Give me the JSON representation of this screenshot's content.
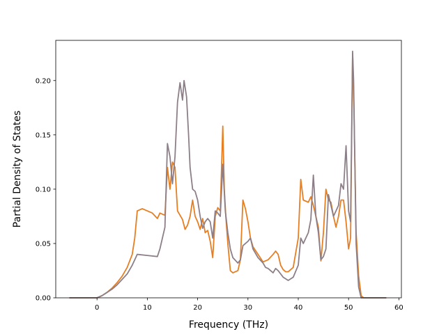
{
  "chart_data": {
    "type": "line",
    "title": "",
    "xlabel": "Frequency (THz)",
    "ylabel": "Partial Density of States",
    "xlim": [
      -8.2,
      60.5
    ],
    "ylim": [
      0,
      0.237
    ],
    "xticks": [
      0,
      10,
      20,
      30,
      40,
      50,
      60
    ],
    "xtick_labels": [
      "0",
      "10",
      "20",
      "30",
      "40",
      "50",
      "60"
    ],
    "yticks": [
      0.0,
      0.05,
      0.1,
      0.15,
      0.2
    ],
    "ytick_labels": [
      "0.00",
      "0.05",
      "0.10",
      "0.15",
      "0.20"
    ],
    "grid": false,
    "legend": "none",
    "series": [
      {
        "color": "#e67e22",
        "points": [
          [
            -5.5,
            0
          ],
          [
            0,
            0
          ],
          [
            1,
            0.002
          ],
          [
            2,
            0.005
          ],
          [
            3,
            0.009
          ],
          [
            4,
            0.014
          ],
          [
            5,
            0.02
          ],
          [
            6,
            0.028
          ],
          [
            7,
            0.04
          ],
          [
            7.5,
            0.055
          ],
          [
            8,
            0.08
          ],
          [
            9,
            0.082
          ],
          [
            10,
            0.08
          ],
          [
            11,
            0.078
          ],
          [
            12,
            0.073
          ],
          [
            12.5,
            0.078
          ],
          [
            13,
            0.077
          ],
          [
            13.5,
            0.076
          ],
          [
            14,
            0.12
          ],
          [
            14.5,
            0.1
          ],
          [
            15,
            0.125
          ],
          [
            15.5,
            0.12
          ],
          [
            16,
            0.08
          ],
          [
            17,
            0.072
          ],
          [
            17.5,
            0.063
          ],
          [
            18,
            0.067
          ],
          [
            18.5,
            0.075
          ],
          [
            19,
            0.09
          ],
          [
            19.5,
            0.075
          ],
          [
            20,
            0.07
          ],
          [
            20.5,
            0.063
          ],
          [
            21,
            0.073
          ],
          [
            21.5,
            0.06
          ],
          [
            22,
            0.062
          ],
          [
            22.5,
            0.052
          ],
          [
            23,
            0.037
          ],
          [
            23.5,
            0.075
          ],
          [
            24,
            0.083
          ],
          [
            24.5,
            0.08
          ],
          [
            25,
            0.158
          ],
          [
            25.3,
            0.1
          ],
          [
            25.6,
            0.075
          ],
          [
            26,
            0.05
          ],
          [
            26.5,
            0.025
          ],
          [
            27,
            0.023
          ],
          [
            28,
            0.025
          ],
          [
            28.5,
            0.035
          ],
          [
            29,
            0.09
          ],
          [
            29.5,
            0.082
          ],
          [
            30,
            0.07
          ],
          [
            30.5,
            0.055
          ],
          [
            31,
            0.047
          ],
          [
            32,
            0.04
          ],
          [
            33,
            0.033
          ],
          [
            34,
            0.035
          ],
          [
            35,
            0.04
          ],
          [
            35.5,
            0.043
          ],
          [
            36,
            0.04
          ],
          [
            36.5,
            0.03
          ],
          [
            37,
            0.026
          ],
          [
            37.5,
            0.024
          ],
          [
            38,
            0.024
          ],
          [
            39,
            0.028
          ],
          [
            40,
            0.055
          ],
          [
            40.5,
            0.109
          ],
          [
            41,
            0.09
          ],
          [
            42,
            0.088
          ],
          [
            42.5,
            0.093
          ],
          [
            43,
            0.085
          ],
          [
            43.5,
            0.075
          ],
          [
            44,
            0.065
          ],
          [
            44.5,
            0.034
          ],
          [
            45,
            0.06
          ],
          [
            45.5,
            0.1
          ],
          [
            46,
            0.09
          ],
          [
            46.5,
            0.088
          ],
          [
            47,
            0.075
          ],
          [
            47.5,
            0.065
          ],
          [
            48,
            0.075
          ],
          [
            48.5,
            0.09
          ],
          [
            49,
            0.09
          ],
          [
            49.5,
            0.07
          ],
          [
            50,
            0.045
          ],
          [
            50.4,
            0.055
          ],
          [
            50.8,
            0.225
          ],
          [
            51,
            0.19
          ],
          [
            51.5,
            0.06
          ],
          [
            52,
            0.02
          ],
          [
            52.5,
            0.002
          ],
          [
            53,
            0
          ],
          [
            57.5,
            0
          ]
        ]
      },
      {
        "color": "#8c7f88",
        "points": [
          [
            -5.5,
            0
          ],
          [
            0,
            0
          ],
          [
            1,
            0.002
          ],
          [
            2,
            0.005
          ],
          [
            3,
            0.008
          ],
          [
            4,
            0.012
          ],
          [
            5,
            0.017
          ],
          [
            6,
            0.022
          ],
          [
            7,
            0.03
          ],
          [
            7.5,
            0.035
          ],
          [
            8,
            0.04
          ],
          [
            10,
            0.039
          ],
          [
            12,
            0.038
          ],
          [
            12.5,
            0.045
          ],
          [
            13,
            0.055
          ],
          [
            13.5,
            0.065
          ],
          [
            14,
            0.142
          ],
          [
            14.5,
            0.13
          ],
          [
            15,
            0.105
          ],
          [
            15.5,
            0.13
          ],
          [
            16,
            0.18
          ],
          [
            16.5,
            0.198
          ],
          [
            17,
            0.182
          ],
          [
            17.3,
            0.2
          ],
          [
            17.8,
            0.185
          ],
          [
            18.2,
            0.15
          ],
          [
            18.5,
            0.12
          ],
          [
            19,
            0.1
          ],
          [
            19.5,
            0.098
          ],
          [
            20,
            0.09
          ],
          [
            20.5,
            0.075
          ],
          [
            21,
            0.064
          ],
          [
            21.5,
            0.07
          ],
          [
            22,
            0.073
          ],
          [
            22.5,
            0.07
          ],
          [
            23,
            0.055
          ],
          [
            23.5,
            0.08
          ],
          [
            24,
            0.078
          ],
          [
            24.5,
            0.075
          ],
          [
            25,
            0.123
          ],
          [
            25.5,
            0.08
          ],
          [
            26,
            0.06
          ],
          [
            26.5,
            0.045
          ],
          [
            27,
            0.037
          ],
          [
            28,
            0.032
          ],
          [
            28.5,
            0.035
          ],
          [
            29,
            0.048
          ],
          [
            30,
            0.052
          ],
          [
            30.5,
            0.055
          ],
          [
            31,
            0.045
          ],
          [
            32,
            0.037
          ],
          [
            33,
            0.032
          ],
          [
            33.5,
            0.028
          ],
          [
            34,
            0.027
          ],
          [
            35,
            0.023
          ],
          [
            35.5,
            0.027
          ],
          [
            36,
            0.025
          ],
          [
            37,
            0.019
          ],
          [
            38,
            0.016
          ],
          [
            39,
            0.019
          ],
          [
            40,
            0.03
          ],
          [
            40.5,
            0.055
          ],
          [
            41,
            0.05
          ],
          [
            42,
            0.06
          ],
          [
            42.5,
            0.072
          ],
          [
            43,
            0.113
          ],
          [
            43.5,
            0.075
          ],
          [
            44,
            0.06
          ],
          [
            44.5,
            0.035
          ],
          [
            45,
            0.038
          ],
          [
            45.5,
            0.045
          ],
          [
            46,
            0.095
          ],
          [
            46.5,
            0.085
          ],
          [
            47,
            0.075
          ],
          [
            47.5,
            0.08
          ],
          [
            48,
            0.085
          ],
          [
            48.5,
            0.105
          ],
          [
            49,
            0.1
          ],
          [
            49.5,
            0.14
          ],
          [
            50,
            0.08
          ],
          [
            50.4,
            0.07
          ],
          [
            50.8,
            0.227
          ],
          [
            51,
            0.2
          ],
          [
            51.5,
            0.05
          ],
          [
            52,
            0.01
          ],
          [
            52.5,
            0
          ],
          [
            57.5,
            0
          ]
        ]
      }
    ]
  }
}
